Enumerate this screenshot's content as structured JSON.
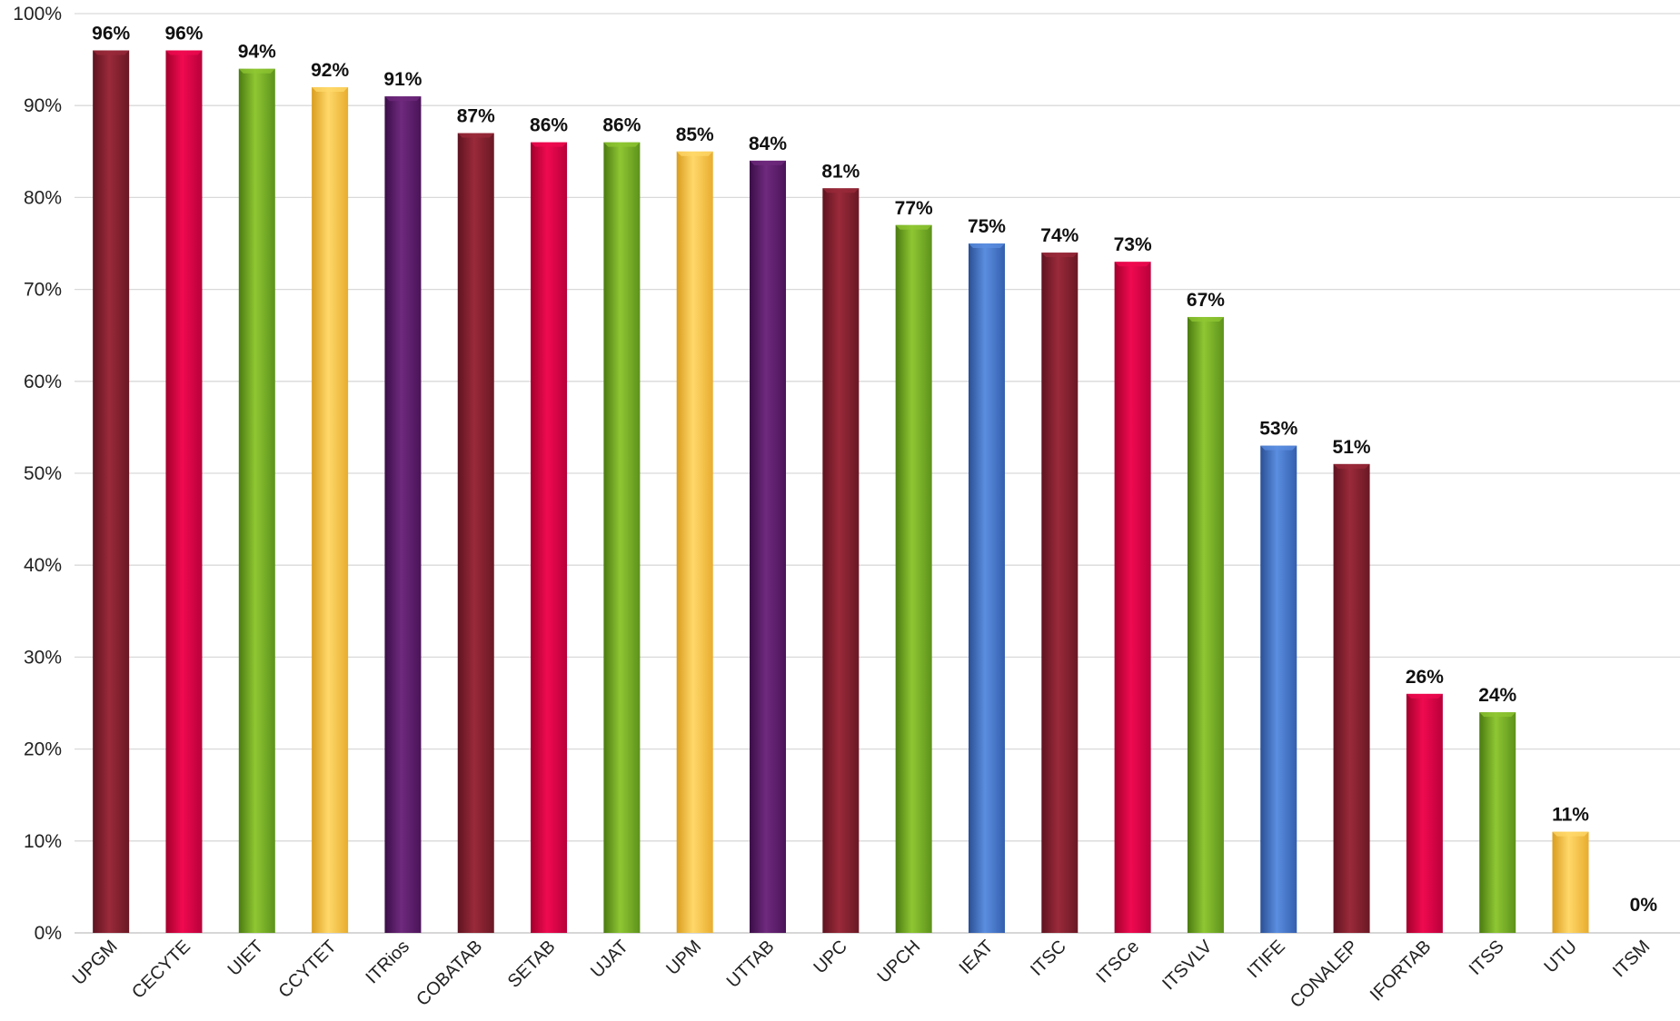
{
  "chart_data": {
    "type": "bar",
    "title": "",
    "xlabel": "",
    "ylabel": "",
    "ylim": [
      0,
      100
    ],
    "yticks": [
      "0%",
      "10%",
      "20%",
      "30%",
      "40%",
      "50%",
      "60%",
      "70%",
      "80%",
      "90%",
      "100%"
    ],
    "grid": true,
    "legend": "none",
    "categories": [
      "UPGM",
      "CECYTE",
      "UIET",
      "CCYTET",
      "ITRios",
      "COBATAB",
      "SETAB",
      "UJAT",
      "UPM",
      "UTTAB",
      "UPC",
      "UPCH",
      "IEAT",
      "ITSC",
      "ITSCe",
      "ITSVLV",
      "ITIFE",
      "CONALEP",
      "IFORTAB",
      "ITSS",
      "UTU",
      "ITSM"
    ],
    "values": [
      96,
      96,
      94,
      92,
      91,
      87,
      86,
      86,
      85,
      84,
      81,
      77,
      75,
      74,
      73,
      67,
      53,
      51,
      26,
      24,
      11,
      0
    ],
    "data_labels": [
      "96%",
      "96%",
      "94%",
      "92%",
      "91%",
      "87%",
      "86%",
      "86%",
      "85%",
      "84%",
      "81%",
      "77%",
      "75%",
      "74%",
      "73%",
      "67%",
      "53%",
      "51%",
      "26%",
      "24%",
      "11%",
      "0%"
    ],
    "bar_colors": [
      "maroon",
      "crimson",
      "green",
      "yellow",
      "purple",
      "maroon",
      "crimson",
      "green",
      "yellow",
      "purple",
      "maroon",
      "green",
      "blue",
      "maroon",
      "crimson",
      "green",
      "blue",
      "maroon",
      "crimson",
      "green",
      "yellow",
      "maroon"
    ],
    "palette": {
      "maroon": [
        "#5e1320",
        "#9a2a3a",
        "#6a1824"
      ],
      "crimson": [
        "#a3002c",
        "#f00a50",
        "#b8003a"
      ],
      "green": [
        "#4a7a10",
        "#8fc733",
        "#5d921b"
      ],
      "yellow": [
        "#d99d1e",
        "#ffd86a",
        "#e8ad2e"
      ],
      "purple": [
        "#3b0d48",
        "#6f2a7e",
        "#4a1358"
      ],
      "blue": [
        "#2a4f94",
        "#5b8ee0",
        "#345fae"
      ]
    },
    "gridline_color": "#d9d9d9"
  }
}
